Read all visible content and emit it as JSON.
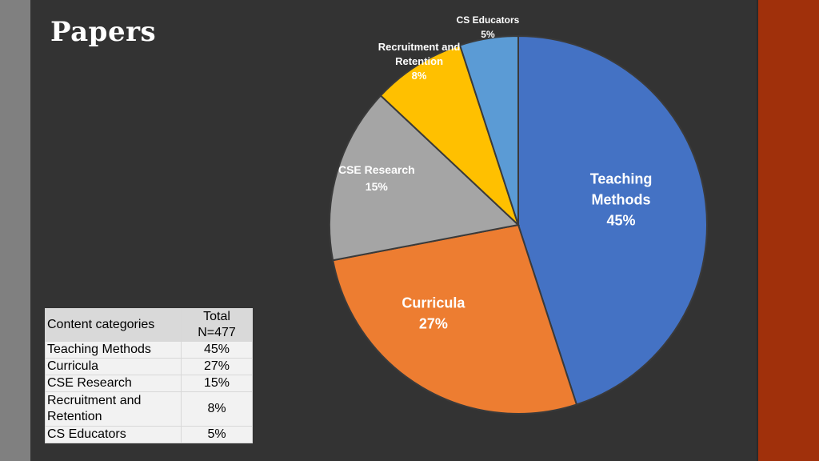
{
  "slide": {
    "title": "Papers"
  },
  "chart_data": {
    "type": "pie",
    "slices": [
      {
        "label": "Teaching Methods",
        "value": 45,
        "display": "45%",
        "color": "#4472c4"
      },
      {
        "label": "Curricula",
        "value": 27,
        "display": "27%",
        "color": "#ed7d31"
      },
      {
        "label": "CSE Research",
        "value": 15,
        "display": "15%",
        "color": "#a5a5a5"
      },
      {
        "label": "Recruitment and Retention",
        "value": 8,
        "display": "8%",
        "color": "#ffc000"
      },
      {
        "label": "CS Educators",
        "value": 5,
        "display": "5%",
        "color": "#5b9bd5"
      }
    ]
  },
  "table": {
    "header": {
      "category": "Content categories",
      "total_line1": "Total",
      "total_line2": "N=477"
    },
    "rows": [
      {
        "category": "Teaching Methods",
        "value": "45%"
      },
      {
        "category": "Curricula",
        "value": "27%"
      },
      {
        "category": "CSE Research",
        "value": "15%"
      },
      {
        "category": "Recruitment and Retention",
        "value": "8%"
      },
      {
        "category": "CS Educators",
        "value": "5%"
      }
    ]
  }
}
